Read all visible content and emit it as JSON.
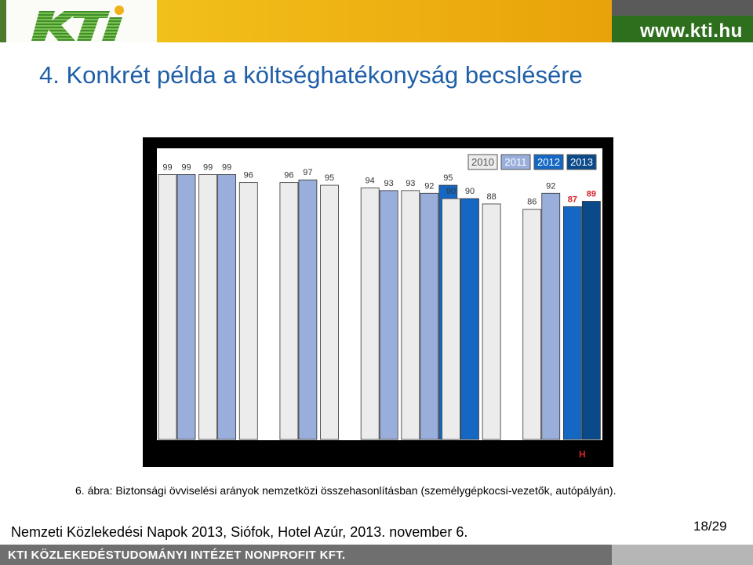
{
  "header": {
    "logo_text": "KTI",
    "url": "www.kti.hu"
  },
  "slide": {
    "title": "4.   Konkrét példa a költséghatékonyság becslésére"
  },
  "colors": {
    "2010": "#ececec",
    "2011": "#99aedb",
    "2012": "#1468c4",
    "2013": "#0a4a8a",
    "highlight_label": "#d8202a",
    "title": "#1f5fa8"
  },
  "chart_data": {
    "type": "bar",
    "legend": [
      "2010",
      "2011",
      "2012",
      "2013"
    ],
    "legend_position": "top-right",
    "ylim": [
      0,
      100
    ],
    "groups": [
      {
        "label": "",
        "bars": [
          {
            "year": "2010",
            "value": 99
          },
          {
            "year": "2011",
            "value": 99
          }
        ]
      },
      {
        "label": "",
        "bars": [
          {
            "year": "2010",
            "value": 99
          },
          {
            "year": "2011",
            "value": 99
          }
        ]
      },
      {
        "label": "",
        "bars": [
          {
            "year": "2010",
            "value": 96
          }
        ]
      },
      {
        "label": "",
        "bars": [
          {
            "year": "2010",
            "value": 96
          },
          {
            "year": "2011",
            "value": 97
          }
        ]
      },
      {
        "label": "",
        "bars": [
          {
            "year": "2010",
            "value": 95
          }
        ]
      },
      {
        "label": "",
        "bars": [
          {
            "year": "2010",
            "value": 94
          },
          {
            "year": "2011",
            "value": 93
          }
        ]
      },
      {
        "label": "",
        "bars": [
          {
            "year": "2010",
            "value": 93
          },
          {
            "year": "2011",
            "value": 92
          },
          {
            "year": "2012",
            "value": 95
          }
        ]
      },
      {
        "label": "",
        "bars": [
          {
            "year": "2010",
            "value": 90
          },
          {
            "year": "2012",
            "value": 90
          }
        ]
      },
      {
        "label": "",
        "bars": [
          {
            "year": "2010",
            "value": 88
          }
        ]
      },
      {
        "label": "",
        "bars": [
          {
            "year": "2010",
            "value": 86
          },
          {
            "year": "2011",
            "value": 92
          }
        ]
      },
      {
        "label": "H",
        "highlight": true,
        "bars": [
          {
            "year": "2012",
            "value": 87
          },
          {
            "year": "2013",
            "value": 89
          }
        ]
      }
    ]
  },
  "caption": "6. ábra:  Biztonsági övviselési arányok nemzetközi összehasonlításban (személygépkocsi-vezetők, autópályán).",
  "footer": {
    "event": "Nemzeti Közlekedési Napok 2013, Siófok, Hotel Azúr, 2013. november 6.",
    "page": "18/29",
    "institute": "KTI KÖZLEKEDÉSTUDOMÁNYI INTÉZET NONPROFIT KFT."
  }
}
